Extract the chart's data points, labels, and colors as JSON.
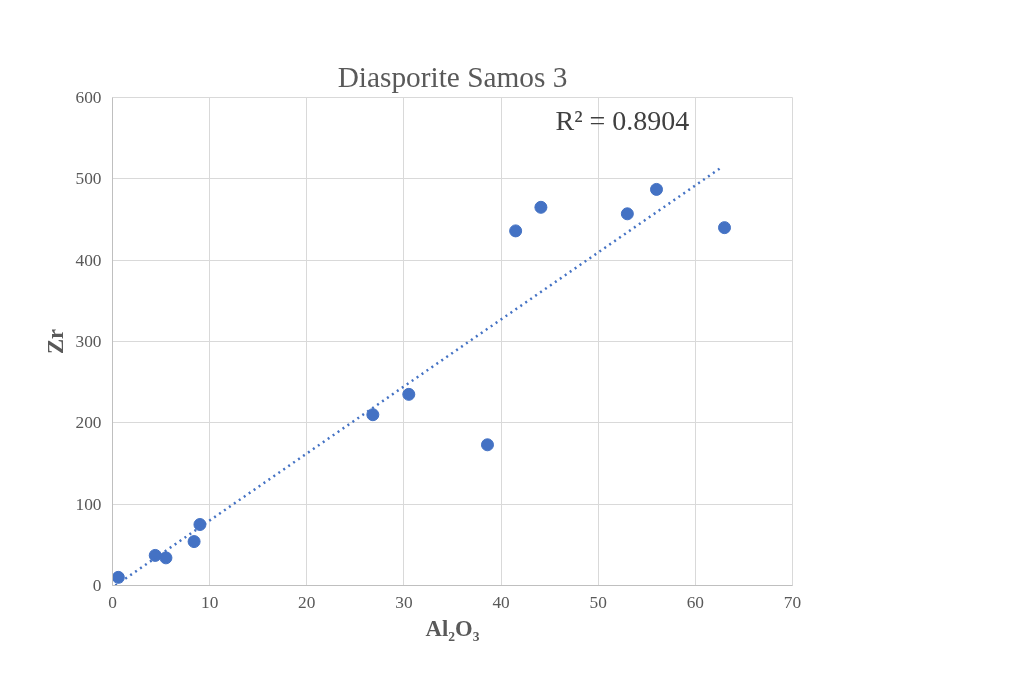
{
  "chart_data": {
    "type": "scatter",
    "title": "Diasporite Samos 3",
    "xlabel": "Al₂O₃",
    "ylabel": "Zr",
    "series": [
      {
        "type": "scatter",
        "color": "#4472c4",
        "marker": "circle",
        "x": [
          0.6,
          4.4,
          5.5,
          8.4,
          9.0,
          26.8,
          30.5,
          38.6,
          41.5,
          44.1,
          53.0,
          56.0,
          63.0
        ],
        "values": [
          10,
          37,
          34,
          54,
          75,
          210,
          235,
          173,
          436,
          465,
          457,
          487,
          440
        ]
      },
      {
        "type": "line",
        "color": "#4472c4",
        "line_style": "dotted",
        "marker": "none",
        "x": [
          0.3,
          62.8
        ],
        "values": [
          0,
          515
        ]
      }
    ],
    "annotations": [
      "R² = 0.8904"
    ],
    "xlim": [
      0,
      70
    ],
    "xticks": [
      0,
      10,
      20,
      30,
      40,
      50,
      60,
      70
    ],
    "ylim": [
      0,
      600
    ],
    "yticks": [
      0,
      100,
      200,
      300,
      400,
      500,
      600
    ],
    "grid": true
  }
}
